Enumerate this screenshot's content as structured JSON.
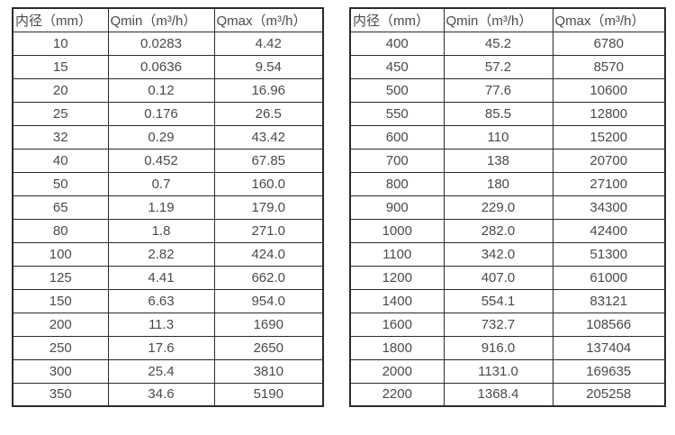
{
  "page": {
    "background_color": "#ffffff",
    "text_color": "#4a4a4a",
    "border_color": "#2b2b2b"
  },
  "tables": [
    {
      "title": "small-diameter-flow-ranges",
      "columns": [
        "内径（mm）",
        "Qmin（m³/h）",
        "Qmax（m³/h）"
      ],
      "rows": [
        [
          "10",
          "0.0283",
          "4.42"
        ],
        [
          "15",
          "0.0636",
          "9.54"
        ],
        [
          "20",
          "0.12",
          "16.96"
        ],
        [
          "25",
          "0.176",
          "26.5"
        ],
        [
          "32",
          "0.29",
          "43.42"
        ],
        [
          "40",
          "0.452",
          "67.85"
        ],
        [
          "50",
          "0.7",
          "160.0"
        ],
        [
          "65",
          "1.19",
          "179.0"
        ],
        [
          "80",
          "1.8",
          "271.0"
        ],
        [
          "100",
          "2.82",
          "424.0"
        ],
        [
          "125",
          "4.41",
          "662.0"
        ],
        [
          "150",
          "6.63",
          "954.0"
        ],
        [
          "200",
          "11.3",
          "1690"
        ],
        [
          "250",
          "17.6",
          "2650"
        ],
        [
          "300",
          "25.4",
          "3810"
        ],
        [
          "350",
          "34.6",
          "5190"
        ]
      ]
    },
    {
      "title": "large-diameter-flow-ranges",
      "columns": [
        "内径（mm）",
        "Qmin（m³/h）",
        "Qmax（m³/h）"
      ],
      "rows": [
        [
          "400",
          "45.2",
          "6780"
        ],
        [
          "450",
          "57.2",
          "8570"
        ],
        [
          "500",
          "77.6",
          "10600"
        ],
        [
          "550",
          "85.5",
          "12800"
        ],
        [
          "600",
          "110",
          "15200"
        ],
        [
          "700",
          "138",
          "20700"
        ],
        [
          "800",
          "180",
          "27100"
        ],
        [
          "900",
          "229.0",
          "34300"
        ],
        [
          "1000",
          "282.0",
          "42400"
        ],
        [
          "1100",
          "342.0",
          "51300"
        ],
        [
          "1200",
          "407.0",
          "61000"
        ],
        [
          "1400",
          "554.1",
          "83121"
        ],
        [
          "1600",
          "732.7",
          "108566"
        ],
        [
          "1800",
          "916.0",
          "137404"
        ],
        [
          "2000",
          "1131.0",
          "169635"
        ],
        [
          "2200",
          "1368.4",
          "205258"
        ]
      ]
    }
  ]
}
